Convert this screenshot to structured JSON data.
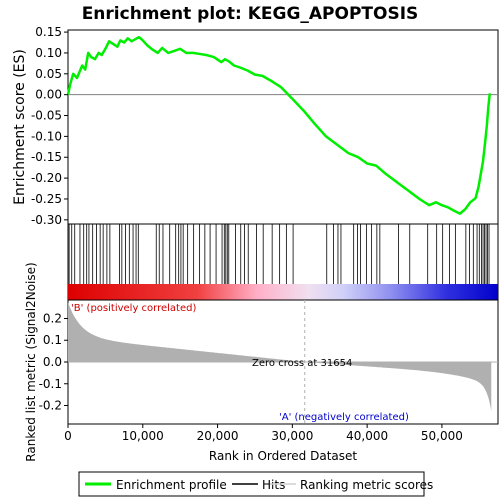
{
  "chart_data": {
    "type": "line",
    "title": "Enrichment plot: KEGG_APOPTOSIS",
    "xlabel": "Rank in Ordered Dataset",
    "ylabel_top": "Enrichment score (ES)",
    "ylabel_bottom": "Ranked list metric (Signal2Noise)",
    "xlim": [
      0,
      57500
    ],
    "ylim_top": [
      -0.31,
      0.155
    ],
    "ylim_bottom": [
      -0.285,
      0.285
    ],
    "x_ticks": [
      0,
      10000,
      20000,
      30000,
      40000,
      50000
    ],
    "x_tick_labels": [
      "0",
      "10,000",
      "20,000",
      "30,000",
      "40,000",
      "50,000"
    ],
    "y_ticks_top": [
      0.15,
      0.1,
      0.05,
      0.0,
      -0.05,
      -0.1,
      -0.15,
      -0.2,
      -0.25,
      -0.3
    ],
    "y_tick_labels_top": [
      "0.15",
      "0.10",
      "0.05",
      "0.00",
      "-0.05",
      "-0.10",
      "-0.15",
      "-0.20",
      "-0.25",
      "-0.30"
    ],
    "y_ticks_bottom": [
      0.2,
      0.1,
      0.0,
      -0.1,
      -0.2
    ],
    "y_tick_labels_bottom": [
      "0.2",
      "0.1",
      "0.0",
      "-0.1",
      "-0.2"
    ],
    "total_genes": 56600,
    "zero_cross": 31654,
    "zero_cross_label": "Zero cross at 31654",
    "pos_label": "'B' (positively correlated)",
    "neg_label": "'A' (negatively correlated)",
    "legend": [
      "Enrichment profile",
      "Hits",
      "Ranking metric scores"
    ],
    "colors": {
      "profile": "#00ee00",
      "hits": "#000000",
      "metric_fill": "#b0b0b0",
      "zero_line": "#b0b0b0",
      "pos_text": "#cc0000",
      "neg_text": "#0000cc",
      "bar_red": "#dd0000",
      "bar_blue": "#0000dd"
    },
    "series": [
      {
        "name": "Enrichment profile",
        "x": [
          0,
          300,
          700,
          1200,
          1900,
          2300,
          2700,
          3100,
          3600,
          4100,
          4500,
          5000,
          5500,
          6000,
          6600,
          7000,
          7500,
          8000,
          8500,
          9000,
          9500,
          10000,
          10600,
          11300,
          12000,
          12600,
          13400,
          14200,
          15000,
          15800,
          16700,
          17500,
          18500,
          19500,
          20500,
          21000,
          21500,
          22200,
          23000,
          24000,
          25000,
          26000,
          27000,
          28500,
          30000,
          31600,
          33000,
          34500,
          36000,
          37500,
          38800,
          40000,
          41200,
          42500,
          44000,
          45500,
          47000,
          48300,
          49200,
          50000,
          50800,
          51600,
          52400,
          53100,
          53800,
          54500,
          54900,
          55200,
          55500,
          55800,
          56000,
          56200,
          56400
        ],
        "y": [
          0.0,
          0.025,
          0.05,
          0.04,
          0.07,
          0.06,
          0.1,
          0.09,
          0.085,
          0.1,
          0.095,
          0.11,
          0.128,
          0.122,
          0.115,
          0.13,
          0.125,
          0.135,
          0.128,
          0.133,
          0.138,
          0.13,
          0.118,
          0.108,
          0.1,
          0.112,
          0.1,
          0.105,
          0.11,
          0.1,
          0.1,
          0.098,
          0.095,
          0.09,
          0.078,
          0.085,
          0.08,
          0.07,
          0.065,
          0.058,
          0.048,
          0.045,
          0.035,
          0.018,
          -0.01,
          -0.04,
          -0.07,
          -0.1,
          -0.12,
          -0.14,
          -0.15,
          -0.165,
          -0.17,
          -0.19,
          -0.21,
          -0.23,
          -0.25,
          -0.265,
          -0.258,
          -0.265,
          -0.27,
          -0.278,
          -0.285,
          -0.275,
          -0.258,
          -0.248,
          -0.22,
          -0.19,
          -0.16,
          -0.11,
          -0.075,
          -0.03,
          0.003
        ]
      }
    ],
    "hits": [
      150,
      500,
      900,
      1600,
      2100,
      2500,
      2800,
      3300,
      3800,
      4300,
      4700,
      5200,
      5600,
      6900,
      7200,
      7700,
      8200,
      8700,
      9100,
      9400,
      11800,
      12200,
      12700,
      13600,
      14400,
      14800,
      15100,
      15400,
      16000,
      16800,
      17600,
      18300,
      19000,
      19800,
      20600,
      20900,
      21100,
      21300,
      21500,
      22400,
      23100,
      23600,
      24100,
      25200,
      26100,
      27300,
      28300,
      29200,
      30100,
      34600,
      35500,
      36100,
      36500,
      38200,
      38700,
      39100,
      39900,
      40600,
      41300,
      41700,
      44200,
      45700,
      48100,
      49300,
      50100,
      51000,
      51800,
      53200,
      53700,
      54200,
      54700,
      55000,
      55300,
      55500,
      55700,
      55900,
      56100,
      56300
    ]
  }
}
